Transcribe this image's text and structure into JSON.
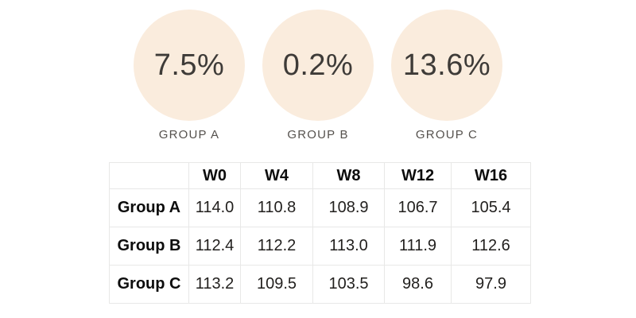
{
  "accent_color": "#faecdd",
  "text_dark": "#3e3b38",
  "stats": [
    {
      "value": "7.5%",
      "label": "GROUP A"
    },
    {
      "value": "0.2%",
      "label": "GROUP B"
    },
    {
      "value": "13.6%",
      "label": "GROUP C"
    }
  ],
  "table": {
    "columns": [
      "",
      "W0",
      "W4",
      "W8",
      "W12",
      "W16"
    ],
    "rows": [
      {
        "label": "Group A",
        "values": [
          "114.0",
          "110.8",
          "108.9",
          "106.7",
          "105.4"
        ]
      },
      {
        "label": "Group B",
        "values": [
          "112.4",
          "112.2",
          "113.0",
          "111.9",
          "112.6"
        ]
      },
      {
        "label": "Group C",
        "values": [
          "113.2",
          "109.5",
          "103.5",
          "98.6",
          "97.9"
        ]
      }
    ]
  },
  "chart_data": {
    "type": "table",
    "stat_callouts": [
      {
        "label": "GROUP A",
        "percent": 7.5
      },
      {
        "label": "GROUP B",
        "percent": 0.2
      },
      {
        "label": "GROUP C",
        "percent": 13.6
      }
    ],
    "columns": [
      "W0",
      "W4",
      "W8",
      "W12",
      "W16"
    ],
    "rows": [
      {
        "label": "Group A",
        "values": [
          114.0,
          110.8,
          108.9,
          106.7,
          105.4
        ]
      },
      {
        "label": "Group B",
        "values": [
          112.4,
          112.2,
          113.0,
          111.9,
          112.6
        ]
      },
      {
        "label": "Group C",
        "values": [
          113.2,
          109.5,
          103.5,
          98.6,
          97.9
        ]
      }
    ]
  }
}
